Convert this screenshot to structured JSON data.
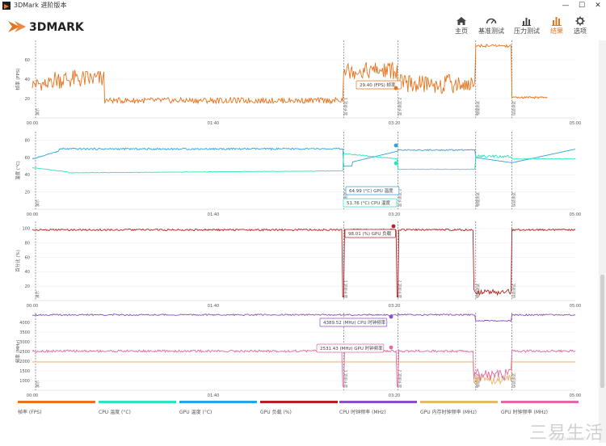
{
  "window": {
    "title": "3DMark 进阶版本",
    "minimize": "—",
    "maximize": "☐",
    "close": "✕"
  },
  "brand": {
    "logo_text": "3DMARK",
    "accent": "#e8731d"
  },
  "nav": [
    {
      "label": "主页",
      "icon": "home-icon",
      "active": false
    },
    {
      "label": "基准测试",
      "icon": "gauge-icon",
      "active": false
    },
    {
      "label": "压力测试",
      "icon": "bar-chart-icon",
      "active": false
    },
    {
      "label": "结果",
      "icon": "results-icon",
      "active": true
    },
    {
      "label": "选项",
      "icon": "gear-icon",
      "active": false
    }
  ],
  "time_ticks": [
    "00:00",
    "01:40",
    "03:20",
    "05:00"
  ],
  "markers": {
    "m1": "演示",
    "m2": "显卡测试 1",
    "m3": "显卡测试 2",
    "m4": "物理测试",
    "m5": "综合测试"
  },
  "chart_data": [
    {
      "type": "line",
      "ylabel": "帧率 (FPS)",
      "yticks": [
        20,
        40,
        60
      ],
      "ylim": [
        0,
        80
      ],
      "tooltip": "29.40 (FPS) 帧率",
      "series": [
        {
          "name": "帧率 (FPS)",
          "color": "#e8731d"
        }
      ]
    },
    {
      "type": "line",
      "ylabel": "温度 (°C)",
      "yticks": [
        20,
        40,
        60,
        80
      ],
      "ylim": [
        0,
        90
      ],
      "tooltips": [
        "64.99 (°C) GPU 温度",
        "51.76 (°C) CPU 温度"
      ],
      "series": [
        {
          "name": "GPU 温度 (°C)",
          "color": "#2ba3e0"
        },
        {
          "name": "CPU 温度 (°C)",
          "color": "#2de3c0"
        }
      ]
    },
    {
      "type": "line",
      "ylabel": "百分比 (%)",
      "yticks": [
        20,
        40,
        60,
        80,
        100
      ],
      "ylim": [
        0,
        110
      ],
      "tooltip": "98.01 (%) GPU 负载",
      "series": [
        {
          "name": "GPU 负载 (%)",
          "color": "#b22222"
        }
      ]
    },
    {
      "type": "line",
      "ylabel": "频率 (MHz)",
      "yticks": [
        1000,
        1500,
        2000,
        2500,
        3000,
        3500,
        4000
      ],
      "ylim": [
        500,
        4500
      ],
      "tooltips": [
        "4389.52 (MHz) CPU 时钟频率",
        "2531.43 (MHz) GPU 时钟频率"
      ],
      "series": [
        {
          "name": "CPU 时钟频率 (MHz)",
          "color": "#8b4fc4"
        },
        {
          "name": "GPU 时钟频率 (MHz)",
          "color": "#e06aa6"
        },
        {
          "name": "GPU 内存时钟频率 (MHz)",
          "color": "#e8b86a"
        }
      ]
    }
  ],
  "legend": [
    {
      "label": "帧率 (FPS)",
      "color": "#e8731d"
    },
    {
      "label": "CPU 温度 (°C)",
      "color": "#2de3c0"
    },
    {
      "label": "GPU 温度 (°C)",
      "color": "#2ba3e0"
    },
    {
      "label": "GPU 负载 (%)",
      "color": "#b22222"
    },
    {
      "label": "CPU 时钟频率 (MHz)",
      "color": "#8b4fc4"
    },
    {
      "label": "GPU 内存时钟频率 (MHz)",
      "color": "#e8b86a"
    },
    {
      "label": "GPU 时钟频率 (MHz)",
      "color": "#e06aa6"
    }
  ],
  "watermark": {
    "main": "三易生活",
    "sub": "www.3elife.net"
  }
}
